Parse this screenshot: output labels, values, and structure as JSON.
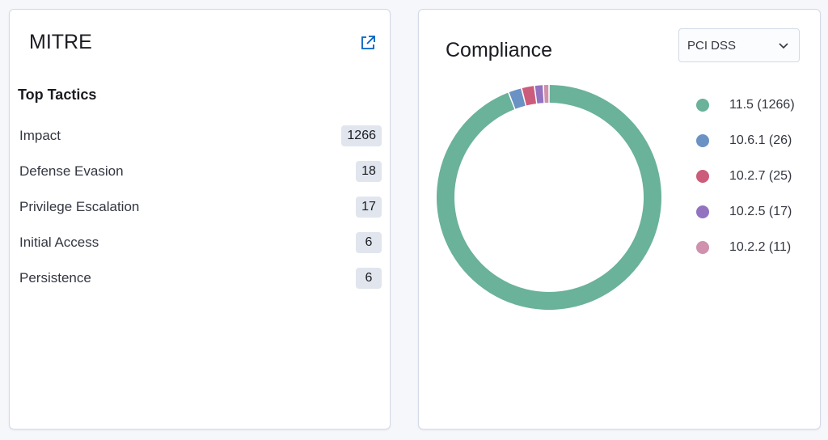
{
  "mitre": {
    "title": "MITRE",
    "section_heading": "Top Tactics",
    "tactics": [
      {
        "label": "Impact",
        "count": "1266"
      },
      {
        "label": "Defense Evasion",
        "count": "18"
      },
      {
        "label": "Privilege Escalation",
        "count": "17"
      },
      {
        "label": "Initial Access",
        "count": "6"
      },
      {
        "label": "Persistence",
        "count": "6"
      }
    ]
  },
  "compliance": {
    "title": "Compliance",
    "selector_value": "PCI DSS",
    "legend": [
      {
        "label": "11.5 (1266)",
        "color": "#6ab29a"
      },
      {
        "label": "10.6.1 (26)",
        "color": "#6a92c4"
      },
      {
        "label": "10.2.7 (25)",
        "color": "#cc5c7c"
      },
      {
        "label": "10.2.5 (17)",
        "color": "#9373c0"
      },
      {
        "label": "10.2.2 (11)",
        "color": "#cf91ad"
      }
    ]
  },
  "chart_data": {
    "type": "pie",
    "title": "",
    "categories": [
      "11.5",
      "10.6.1",
      "10.2.7",
      "10.2.5",
      "10.2.2"
    ],
    "values": [
      1266,
      26,
      25,
      17,
      11
    ],
    "colors": [
      "#6ab29a",
      "#6a92c4",
      "#cc5c7c",
      "#9373c0",
      "#cf91ad"
    ],
    "legend_position": "right"
  },
  "icons": {
    "external_link": "external-link-icon",
    "chevron": "chevron-down-icon"
  }
}
